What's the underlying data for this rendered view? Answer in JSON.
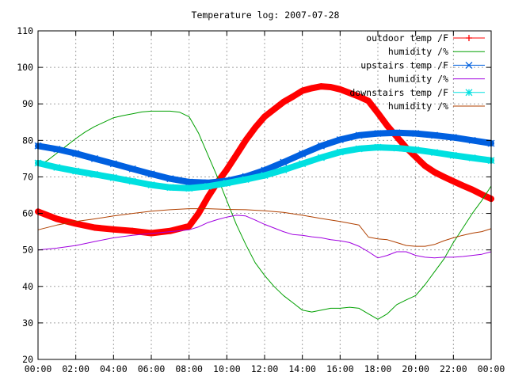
{
  "chart_data": {
    "type": "line",
    "title": "Temperature log: 2007-07-28",
    "xlabel": "",
    "ylabel": "",
    "xlim": [
      0,
      24
    ],
    "ylim": [
      20,
      110
    ],
    "grid": true,
    "legend_position": "top-right",
    "x_ticks": [
      {
        "value": 0,
        "label": "00:00"
      },
      {
        "value": 2,
        "label": "02:00"
      },
      {
        "value": 4,
        "label": "04:00"
      },
      {
        "value": 6,
        "label": "06:00"
      },
      {
        "value": 8,
        "label": "08:00"
      },
      {
        "value": 10,
        "label": "10:00"
      },
      {
        "value": 12,
        "label": "12:00"
      },
      {
        "value": 14,
        "label": "14:00"
      },
      {
        "value": 16,
        "label": "16:00"
      },
      {
        "value": 18,
        "label": "18:00"
      },
      {
        "value": 20,
        "label": "20:00"
      },
      {
        "value": 22,
        "label": "22:00"
      },
      {
        "value": 24,
        "label": "00:00"
      }
    ],
    "y_ticks": [
      {
        "value": 20,
        "label": "20"
      },
      {
        "value": 30,
        "label": "30"
      },
      {
        "value": 40,
        "label": "40"
      },
      {
        "value": 50,
        "label": "50"
      },
      {
        "value": 60,
        "label": "60"
      },
      {
        "value": 70,
        "label": "70"
      },
      {
        "value": 80,
        "label": "80"
      },
      {
        "value": 90,
        "label": "90"
      },
      {
        "value": 100,
        "label": "100"
      },
      {
        "value": 110,
        "label": "110"
      }
    ],
    "series": [
      {
        "name": "outdoor temp /F",
        "color": "#ff0000",
        "marker": "plus",
        "thick": true,
        "x": [
          0,
          1,
          2,
          3,
          4,
          5,
          6,
          7,
          8,
          8.5,
          9,
          9.5,
          10,
          10.5,
          11,
          11.5,
          12,
          12.5,
          13,
          13.5,
          14,
          14.5,
          15,
          15.5,
          16,
          16.5,
          17,
          17.5,
          18,
          18.5,
          19,
          19.5,
          20,
          20.5,
          21,
          21.5,
          22,
          22.5,
          23,
          23.5,
          24
        ],
        "y": [
          60.5,
          58.5,
          57.2,
          56.1,
          55.6,
          55.2,
          54.6,
          55.2,
          56.5,
          60,
          64.5,
          68.5,
          72,
          76,
          80,
          83.5,
          86.5,
          88.5,
          90.5,
          92,
          93.6,
          94.3,
          94.8,
          94.6,
          94,
          93,
          92,
          90.8,
          87.5,
          84,
          81,
          78,
          75.5,
          73,
          71.3,
          70,
          68.8,
          67.6,
          66.5,
          65.2,
          64
        ]
      },
      {
        "name": "humidity /%",
        "color": "#00a000",
        "marker": "none",
        "thick": false,
        "x": [
          0,
          0.5,
          1,
          1.5,
          2,
          2.5,
          3,
          3.5,
          4,
          4.5,
          5,
          5.5,
          6,
          6.5,
          7,
          7.5,
          8,
          8.5,
          9,
          9.5,
          10,
          10.5,
          11,
          11.5,
          12,
          12.5,
          13,
          13.5,
          14,
          14.5,
          15,
          15.5,
          16,
          16.5,
          17,
          17.5,
          18,
          18.5,
          19,
          19.5,
          20,
          20.5,
          21,
          21.5,
          22,
          22.5,
          23,
          23.5,
          24
        ],
        "y": [
          73,
          74.5,
          76.5,
          78.5,
          80.5,
          82.3,
          83.8,
          85,
          86.2,
          86.8,
          87.3,
          87.8,
          88,
          88,
          88,
          87.7,
          86.5,
          82,
          76,
          70,
          63.5,
          57,
          51.5,
          46.5,
          43,
          40,
          37.5,
          35.5,
          33.5,
          33,
          33.5,
          34,
          34,
          34.3,
          34,
          32.5,
          31,
          32.5,
          35,
          36.3,
          37.5,
          40.5,
          44,
          47.5,
          52,
          56,
          60,
          63.5,
          67.5
        ]
      },
      {
        "name": "upstairs temp /F",
        "color": "#0060e0",
        "marker": "x",
        "thick": true,
        "x": [
          0,
          1,
          2,
          3,
          4,
          5,
          6,
          7,
          8,
          9,
          10,
          11,
          12,
          13,
          14,
          15,
          16,
          17,
          18,
          19,
          20,
          21,
          22,
          23,
          24
        ],
        "y": [
          78.5,
          77.6,
          76.4,
          75,
          73.6,
          72.2,
          70.8,
          69.5,
          68.6,
          68.4,
          68.9,
          70.1,
          71.8,
          74,
          76.3,
          78.5,
          80.2,
          81.4,
          81.9,
          82.1,
          81.9,
          81.4,
          80.8,
          80,
          79.2
        ]
      },
      {
        "name": "humidity /%",
        "color": "#a000e0",
        "marker": "none",
        "thick": false,
        "x": [
          0,
          1,
          2,
          3,
          4,
          5,
          6,
          7,
          8,
          8.5,
          9,
          9.5,
          10,
          10.5,
          11,
          11.5,
          12,
          12.5,
          13,
          13.5,
          14,
          14.5,
          15,
          15.5,
          16,
          16.5,
          17,
          17.5,
          18,
          18.5,
          19,
          19.5,
          20,
          20.5,
          21,
          21.5,
          22,
          22.5,
          23,
          23.5,
          24
        ],
        "y": [
          50,
          50.5,
          51.2,
          52.3,
          53.3,
          54,
          54.5,
          55,
          55.5,
          56.3,
          57.5,
          58.3,
          59,
          59.5,
          59.3,
          58.2,
          57,
          56,
          55,
          54.2,
          54,
          53.6,
          53.3,
          52.8,
          52.5,
          52,
          51,
          49.5,
          47.8,
          48.5,
          49.5,
          49.5,
          48.5,
          48,
          47.8,
          48,
          48,
          48.2,
          48.5,
          48.8,
          49.5
        ]
      },
      {
        "name": "downstairs temp /F",
        "color": "#00e0e0",
        "marker": "star",
        "thick": true,
        "x": [
          0,
          1,
          2,
          3,
          4,
          5,
          6,
          7,
          8,
          9,
          10,
          11,
          12,
          13,
          14,
          15,
          16,
          17,
          18,
          19,
          20,
          21,
          22,
          23,
          24
        ],
        "y": [
          73.8,
          72.6,
          71.6,
          70.7,
          69.8,
          68.8,
          67.8,
          67.1,
          66.9,
          67.4,
          68.3,
          69.3,
          70.4,
          71.9,
          73.6,
          75.3,
          76.8,
          77.7,
          78.1,
          77.9,
          77.4,
          76.7,
          75.9,
          75.2,
          74.5
        ]
      },
      {
        "name": "humidity /%",
        "color": "#b04000",
        "marker": "none",
        "thick": false,
        "x": [
          0,
          1,
          2,
          3,
          4,
          5,
          6,
          7,
          8,
          9,
          10,
          11,
          12,
          13,
          14,
          15,
          16,
          17,
          17.5,
          18,
          18.5,
          19,
          19.5,
          20,
          20.5,
          21,
          21.5,
          22,
          22.5,
          23,
          23.5,
          24
        ],
        "y": [
          55.5,
          56.8,
          57.8,
          58.5,
          59.3,
          60,
          60.6,
          61,
          61.3,
          61.3,
          61.1,
          61,
          60.7,
          60.3,
          59.5,
          58.6,
          57.8,
          56.8,
          53.5,
          53,
          52.8,
          52,
          51.2,
          51,
          51,
          51.5,
          52.5,
          53.3,
          54,
          54.6,
          55,
          55.8
        ]
      }
    ]
  }
}
